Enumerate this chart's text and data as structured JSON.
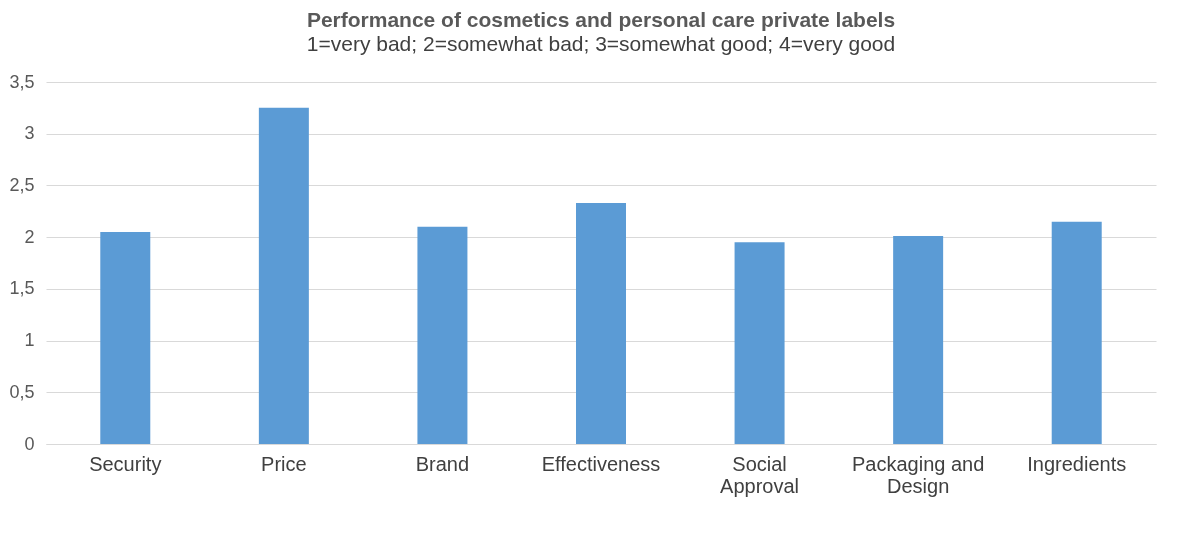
{
  "chart_data": {
    "type": "bar",
    "title": "Performance of cosmetics and personal care private labels",
    "subtitle": "1=very bad; 2=somewhat bad; 3=somewhat good; 4=very good",
    "categories": [
      "Security",
      "Price",
      "Brand",
      "Effectiveness",
      "Social Approval",
      "Packaging and Design",
      "Ingredients"
    ],
    "values": [
      2.05,
      3.25,
      2.1,
      2.33,
      1.95,
      2.01,
      2.15
    ],
    "color": "#5b9bd5",
    "ylim": [
      0,
      3.5
    ],
    "yticks": [
      0,
      {
        "value": 0.5,
        "label": "0,5"
      },
      1,
      {
        "value": 1.5,
        "label": "1,5"
      },
      2,
      {
        "value": 2.5,
        "label": "2,5"
      },
      3,
      {
        "value": 3.5,
        "label": "3,5"
      }
    ],
    "grid": "y"
  }
}
